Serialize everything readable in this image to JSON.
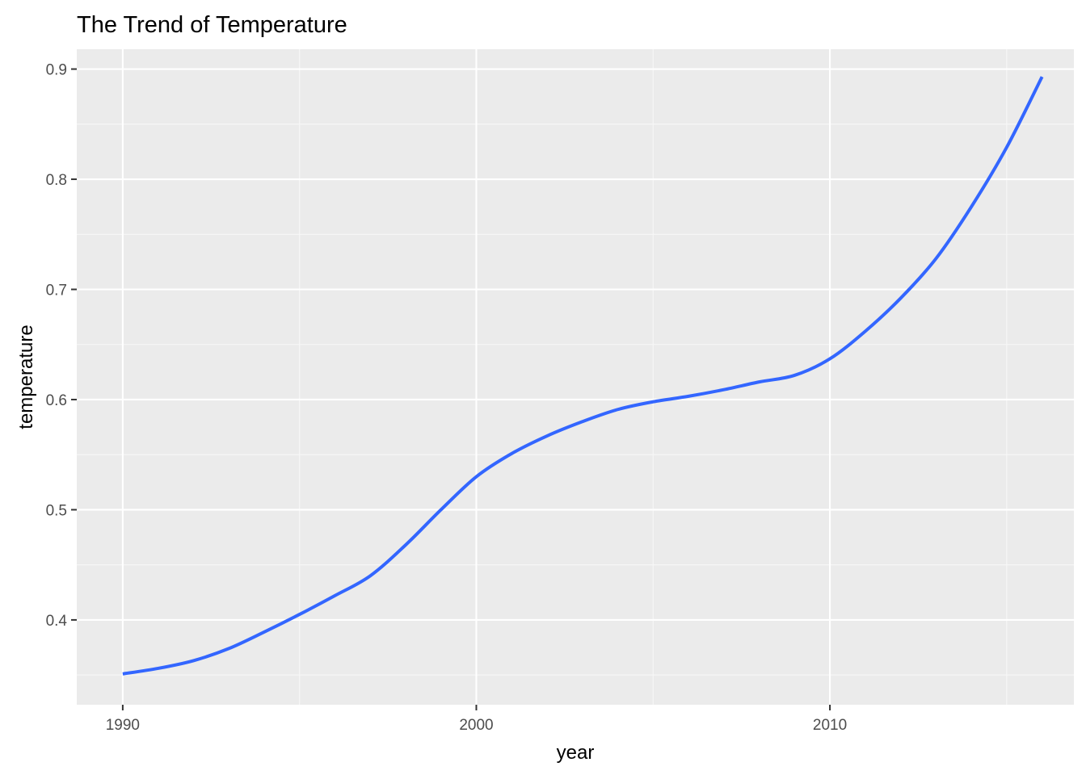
{
  "colors": {
    "panel_background": "#EBEBEB",
    "grid_major": "#FFFFFF",
    "grid_minor": "#F7F7F7",
    "line": "#3366FF",
    "tick_mark": "#333333",
    "tick_text": "#4D4D4D",
    "title_text": "#000000"
  },
  "chart_data": {
    "type": "line",
    "title": "The Trend of Temperature",
    "xlabel": "year",
    "ylabel": "temperature",
    "xlim": [
      1988.7,
      2016.9
    ],
    "ylim": [
      0.323,
      0.918
    ],
    "x_ticks": [
      1990,
      2000,
      2010
    ],
    "x_tick_labels": [
      "1990",
      "2000",
      "2010"
    ],
    "y_ticks": [
      0.4,
      0.5,
      0.6,
      0.7,
      0.8,
      0.9
    ],
    "y_tick_labels": [
      "0.4",
      "0.5",
      "0.6",
      "0.7",
      "0.8",
      "0.9"
    ],
    "grid": true,
    "legend": "none",
    "series": [
      {
        "x": [
          1990,
          1991,
          1992,
          1993,
          1994,
          1995,
          1996,
          1997,
          1998,
          1999,
          2000,
          2001,
          2002,
          2003,
          2004,
          2005,
          2006,
          2007,
          2008,
          2009,
          2010,
          2011,
          2012,
          2013,
          2014,
          2015,
          2016
        ],
        "y": [
          0.351,
          0.356,
          0.363,
          0.374,
          0.389,
          0.405,
          0.422,
          0.44,
          0.468,
          0.5,
          0.53,
          0.551,
          0.567,
          0.58,
          0.591,
          0.598,
          0.603,
          0.609,
          0.616,
          0.622,
          0.637,
          0.662,
          0.692,
          0.728,
          0.775,
          0.829,
          0.893
        ]
      }
    ]
  }
}
